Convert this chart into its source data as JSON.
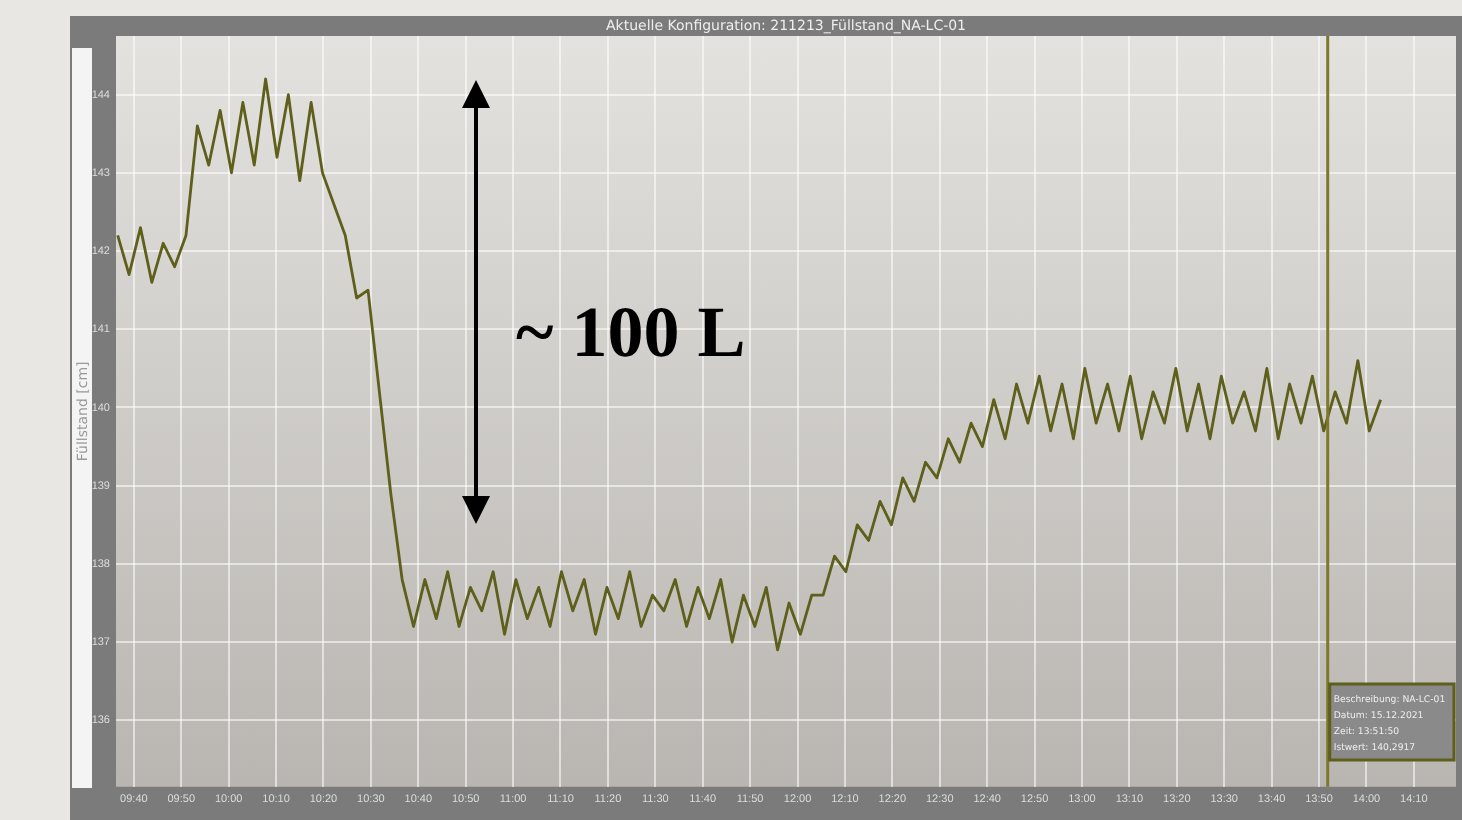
{
  "chart_data": {
    "type": "line",
    "title": "Aktuelle Konfiguration: 211213_Füllstand_NA-LC-01",
    "ylabel": "Füllstand [cm]",
    "annotations": [
      "~ 100 L",
      "Beschreibung: NA-LC-01",
      "Datum: 15.12.2021",
      "Zeit: 13:51:50",
      "Istwert: 140,2917"
    ],
    "x": [
      9.61,
      9.65,
      9.69,
      9.73,
      9.77,
      9.81,
      9.85,
      9.89,
      9.93,
      9.97,
      10.01,
      10.05,
      10.09,
      10.13,
      10.17,
      10.21,
      10.25,
      10.29,
      10.33,
      10.37,
      10.41,
      10.45,
      10.49,
      10.53,
      10.57,
      10.61,
      10.65,
      10.69,
      10.73,
      10.77,
      10.81,
      10.85,
      10.89,
      10.93,
      10.97,
      11.01,
      11.05,
      11.09,
      11.13,
      11.17,
      11.21,
      11.25,
      11.29,
      11.33,
      11.37,
      11.41,
      11.45,
      11.49,
      11.53,
      11.57,
      11.61,
      11.65,
      11.69,
      11.73,
      11.77,
      11.81,
      11.85,
      11.89,
      11.93,
      11.97,
      12.01,
      12.05,
      12.09,
      12.13,
      12.17,
      12.21,
      12.25,
      12.29,
      12.33,
      12.37,
      12.41,
      12.45,
      12.49,
      12.53,
      12.57,
      12.61,
      12.65,
      12.69,
      12.73,
      12.77,
      12.81,
      12.85,
      12.89,
      12.93,
      12.97,
      13.01,
      13.05,
      13.09,
      13.13,
      13.17,
      13.21,
      13.25,
      13.29,
      13.33,
      13.37,
      13.41,
      13.45,
      13.49,
      13.53,
      13.57,
      13.61,
      13.65,
      13.69,
      13.73,
      13.77,
      13.81,
      13.85,
      13.89,
      13.93,
      13.97,
      14.01,
      14.05
    ],
    "series": [
      {
        "color": "#5f5f1c",
        "values": [
          142.2,
          141.7,
          142.3,
          141.6,
          142.1,
          141.8,
          142.2,
          143.6,
          143.1,
          143.8,
          143.0,
          143.9,
          143.1,
          144.2,
          143.2,
          144.0,
          142.9,
          143.9,
          143.0,
          142.6,
          142.2,
          141.4,
          141.5,
          140.2,
          138.9,
          137.8,
          137.2,
          137.8,
          137.3,
          137.9,
          137.2,
          137.7,
          137.4,
          137.9,
          137.1,
          137.8,
          137.3,
          137.7,
          137.2,
          137.9,
          137.4,
          137.8,
          137.1,
          137.7,
          137.3,
          137.9,
          137.2,
          137.6,
          137.4,
          137.8,
          137.2,
          137.7,
          137.3,
          137.8,
          137.0,
          137.6,
          137.2,
          137.7,
          136.9,
          137.5,
          137.1,
          137.6,
          137.6,
          138.1,
          137.9,
          138.5,
          138.3,
          138.8,
          138.5,
          139.1,
          138.8,
          139.3,
          139.1,
          139.6,
          139.3,
          139.8,
          139.5,
          140.1,
          139.6,
          140.3,
          139.8,
          140.4,
          139.7,
          140.3,
          139.6,
          140.5,
          139.8,
          140.3,
          139.7,
          140.4,
          139.6,
          140.2,
          139.8,
          140.5,
          139.7,
          140.3,
          139.6,
          140.4,
          139.8,
          140.2,
          139.7,
          140.5,
          139.6,
          140.3,
          139.8,
          140.4,
          139.7,
          140.2,
          139.8,
          140.6,
          139.7,
          140.1
        ]
      }
    ],
    "xlim": [
      9.604,
      14.315
    ],
    "xticks": [
      {
        "value": 9.6667,
        "label": "09:40"
      },
      {
        "value": 9.8333,
        "label": "09:50"
      },
      {
        "value": 10,
        "label": "10:00"
      },
      {
        "value": 10.1667,
        "label": "10:10"
      },
      {
        "value": 10.3333,
        "label": "10:20"
      },
      {
        "value": 10.5,
        "label": "10:30"
      },
      {
        "value": 10.6667,
        "label": "10:40"
      },
      {
        "value": 10.8333,
        "label": "10:50"
      },
      {
        "value": 11,
        "label": "11:00"
      },
      {
        "value": 11.1667,
        "label": "11:10"
      },
      {
        "value": 11.3333,
        "label": "11:20"
      },
      {
        "value": 11.5,
        "label": "11:30"
      },
      {
        "value": 11.6667,
        "label": "11:40"
      },
      {
        "value": 11.8333,
        "label": "11:50"
      },
      {
        "value": 12,
        "label": "12:00"
      },
      {
        "value": 12.1667,
        "label": "12:10"
      },
      {
        "value": 12.3333,
        "label": "12:20"
      },
      {
        "value": 12.5,
        "label": "12:30"
      },
      {
        "value": 12.6667,
        "label": "12:40"
      },
      {
        "value": 12.8333,
        "label": "12:50"
      },
      {
        "value": 13,
        "label": "13:00"
      },
      {
        "value": 13.1667,
        "label": "13:10"
      },
      {
        "value": 13.3333,
        "label": "13:20"
      },
      {
        "value": 13.5,
        "label": "13:30"
      },
      {
        "value": 13.6667,
        "label": "13:40"
      },
      {
        "value": 13.8333,
        "label": "13:50"
      },
      {
        "value": 14,
        "label": "14:00"
      },
      {
        "value": 14.1667,
        "label": "14:10"
      }
    ],
    "ylim": [
      135.15,
      144.75
    ],
    "yticks": [
      136,
      137,
      138,
      139,
      140,
      141,
      142,
      143,
      144
    ],
    "ref_lines": [
      {
        "axis": "x",
        "value": 13.864,
        "color": "#7a7a2a"
      }
    ],
    "grid": true,
    "legend": false,
    "marker": "none",
    "line_style": "solid"
  }
}
